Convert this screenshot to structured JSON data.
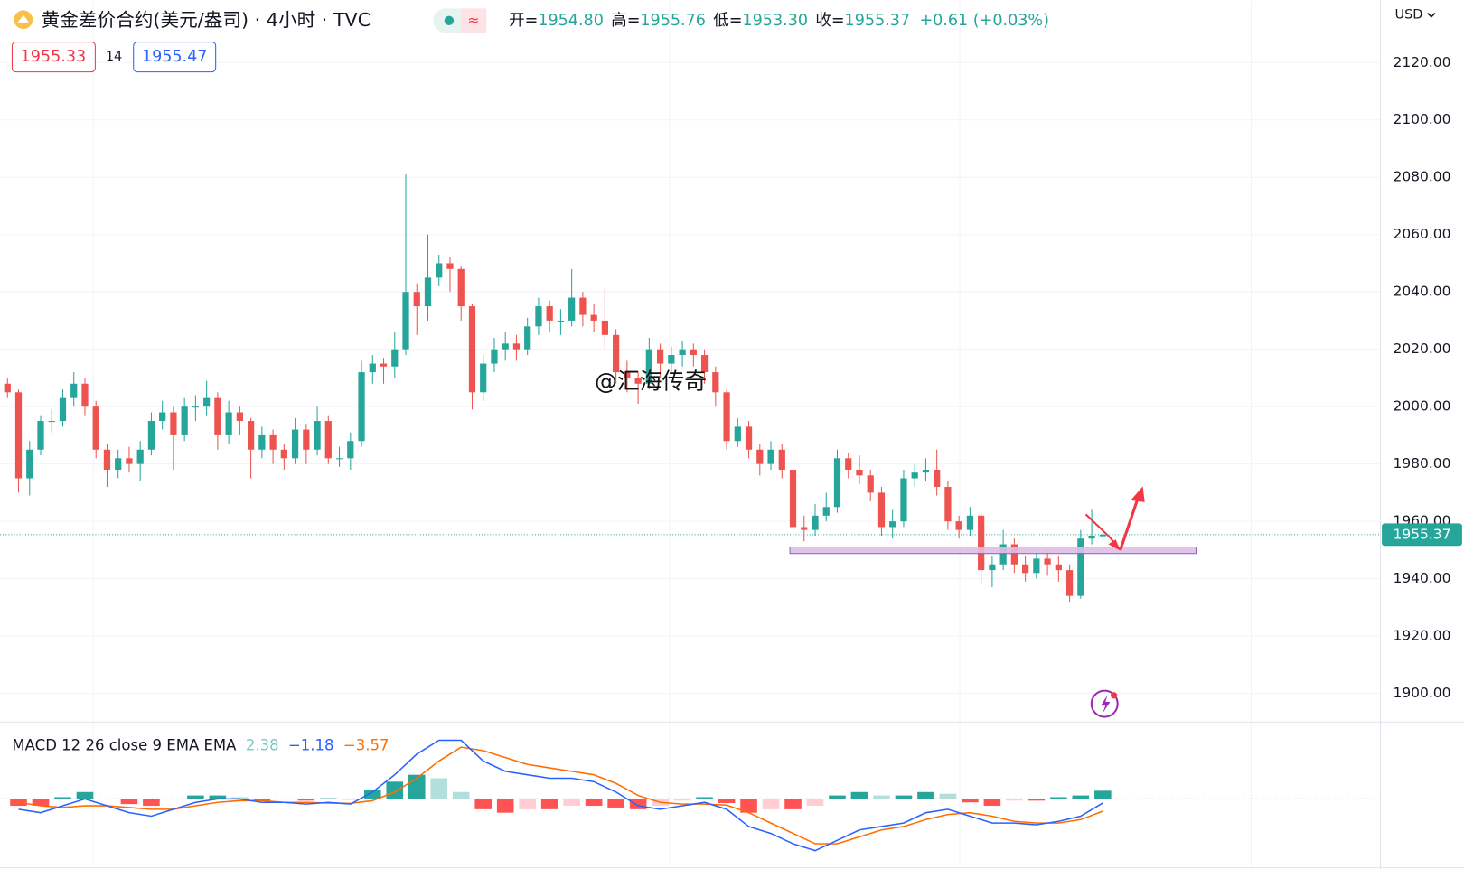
{
  "chart_data": {
    "type": "candlestick",
    "title": "黄金差价合约(美元/盎司) · 4小时 · TVC",
    "ohlc_legend": [
      {
        "label": "开=",
        "value": "1954.80"
      },
      {
        "label": "高=",
        "value": "1955.76"
      },
      {
        "label": "低=",
        "value": "1953.30"
      },
      {
        "label": "收=",
        "value": "1955.37"
      }
    ],
    "change": "+0.61 (+0.03%)",
    "bid": "1955.33",
    "spread": "14",
    "ask": "1955.47",
    "currency": "USD",
    "watermark": "@汇海传奇",
    "colors": {
      "up": "#26a69a",
      "down": "#ef5350"
    },
    "grid": true,
    "ylim": [
      1890.2,
      2141.8
    ],
    "yticks": [
      {
        "value": 1900,
        "label": "1900.00"
      },
      {
        "value": 1920,
        "label": "1920.00"
      },
      {
        "value": 1940,
        "label": "1940.00"
      },
      {
        "value": 1960,
        "label": "1960.00"
      },
      {
        "value": 1980,
        "label": "1980.00"
      },
      {
        "value": 2000,
        "label": "2000.00"
      },
      {
        "value": 2020,
        "label": "2020.00"
      },
      {
        "value": 2040,
        "label": "2040.00"
      },
      {
        "value": 2060,
        "label": "2060.00"
      },
      {
        "value": 2080,
        "label": "2080.00"
      },
      {
        "value": 2100,
        "label": "2100.00"
      },
      {
        "value": 2120,
        "label": "2120.00"
      }
    ],
    "candles": [
      [
        2008,
        2010,
        2003,
        2005
      ],
      [
        2005,
        2006,
        1970,
        1975
      ],
      [
        1975,
        1988,
        1969,
        1985
      ],
      [
        1985,
        1997,
        1983,
        1995
      ],
      [
        1995,
        1999,
        1991,
        1995
      ],
      [
        1995,
        2006,
        1993,
        2003
      ],
      [
        2003,
        2012,
        2000,
        2008
      ],
      [
        2008,
        2010,
        1997,
        2000
      ],
      [
        2000,
        2002,
        1982,
        1985
      ],
      [
        1985,
        1987,
        1972,
        1978
      ],
      [
        1978,
        1985,
        1975,
        1982
      ],
      [
        1982,
        1986,
        1977,
        1980
      ],
      [
        1980,
        1988,
        1974,
        1985
      ],
      [
        1985,
        1998,
        1983,
        1995
      ],
      [
        1995,
        2002,
        1992,
        1998
      ],
      [
        1998,
        2000,
        1978,
        1990
      ],
      [
        1990,
        2003,
        1988,
        2000
      ],
      [
        2000,
        2004,
        1995,
        2000
      ],
      [
        2000,
        2009,
        1997,
        2003
      ],
      [
        2003,
        2005,
        1985,
        1990
      ],
      [
        1990,
        2002,
        1987,
        1998
      ],
      [
        1998,
        2000,
        1990,
        1995
      ],
      [
        1995,
        1996,
        1975,
        1985
      ],
      [
        1985,
        1993,
        1982,
        1990
      ],
      [
        1990,
        1992,
        1980,
        1985
      ],
      [
        1985,
        1987,
        1978,
        1982
      ],
      [
        1982,
        1996,
        1980,
        1992
      ],
      [
        1992,
        1994,
        1980,
        1985
      ],
      [
        1985,
        2000,
        1983,
        1995
      ],
      [
        1995,
        1997,
        1980,
        1982
      ],
      [
        1982,
        1986,
        1979,
        1982
      ],
      [
        1982,
        1991,
        1978,
        1988
      ],
      [
        1988,
        2016,
        1986,
        2012
      ],
      [
        2012,
        2018,
        2008,
        2015
      ],
      [
        2015,
        2017,
        2008,
        2014
      ],
      [
        2014,
        2026,
        2010,
        2020
      ],
      [
        2020,
        2081,
        2018,
        2040
      ],
      [
        2040,
        2043,
        2025,
        2035
      ],
      [
        2035,
        2060,
        2030,
        2045
      ],
      [
        2045,
        2053,
        2042,
        2050
      ],
      [
        2050,
        2052,
        2040,
        2048
      ],
      [
        2048,
        2049,
        2030,
        2035
      ],
      [
        2035,
        2036,
        1999,
        2005
      ],
      [
        2005,
        2018,
        2002,
        2015
      ],
      [
        2015,
        2024,
        2012,
        2020
      ],
      [
        2020,
        2026,
        2016,
        2022
      ],
      [
        2022,
        2025,
        2016,
        2020
      ],
      [
        2020,
        2031,
        2018,
        2028
      ],
      [
        2028,
        2038,
        2025,
        2035
      ],
      [
        2035,
        2037,
        2026,
        2030
      ],
      [
        2030,
        2034,
        2025,
        2030
      ],
      [
        2030,
        2048,
        2028,
        2038
      ],
      [
        2038,
        2040,
        2028,
        2032
      ],
      [
        2032,
        2036,
        2026,
        2030
      ],
      [
        2030,
        2041,
        2020,
        2025
      ],
      [
        2025,
        2027,
        2008,
        2012
      ],
      [
        2012,
        2016,
        2005,
        2010
      ],
      [
        2010,
        2012,
        2001,
        2008
      ],
      [
        2008,
        2024,
        2006,
        2020
      ],
      [
        2020,
        2022,
        2010,
        2015
      ],
      [
        2015,
        2021,
        2012,
        2018
      ],
      [
        2018,
        2023,
        2014,
        2020
      ],
      [
        2020,
        2022,
        2014,
        2018
      ],
      [
        2018,
        2020,
        2008,
        2012
      ],
      [
        2012,
        2014,
        2000,
        2005
      ],
      [
        2005,
        2006,
        1985,
        1988
      ],
      [
        1988,
        1996,
        1986,
        1993
      ],
      [
        1993,
        1995,
        1982,
        1985
      ],
      [
        1985,
        1987,
        1976,
        1980
      ],
      [
        1980,
        1988,
        1978,
        1985
      ],
      [
        1985,
        1987,
        1975,
        1978
      ],
      [
        1978,
        1979,
        1952,
        1958
      ],
      [
        1958,
        1962,
        1953,
        1957
      ],
      [
        1957,
        1966,
        1955,
        1962
      ],
      [
        1962,
        1970,
        1960,
        1965
      ],
      [
        1965,
        1985,
        1963,
        1982
      ],
      [
        1982,
        1984,
        1975,
        1978
      ],
      [
        1978,
        1983,
        1973,
        1976
      ],
      [
        1976,
        1978,
        1967,
        1970
      ],
      [
        1970,
        1972,
        1955,
        1958
      ],
      [
        1958,
        1964,
        1954,
        1960
      ],
      [
        1960,
        1978,
        1958,
        1975
      ],
      [
        1975,
        1980,
        1972,
        1977
      ],
      [
        1977,
        1982,
        1974,
        1978
      ],
      [
        1978,
        1985,
        1969,
        1972
      ],
      [
        1972,
        1974,
        1957,
        1960
      ],
      [
        1960,
        1962,
        1954,
        1957
      ],
      [
        1957,
        1965,
        1955,
        1962
      ],
      [
        1962,
        1963,
        1938,
        1943
      ],
      [
        1943,
        1948,
        1937,
        1945
      ],
      [
        1945,
        1957,
        1943,
        1952
      ],
      [
        1952,
        1954,
        1942,
        1945
      ],
      [
        1945,
        1948,
        1939,
        1942
      ],
      [
        1942,
        1950,
        1940,
        1947
      ],
      [
        1947,
        1950,
        1941,
        1945
      ],
      [
        1945,
        1948,
        1939,
        1943
      ],
      [
        1943,
        1945,
        1932,
        1934
      ],
      [
        1934,
        1957,
        1933,
        1954
      ],
      [
        1954,
        1964,
        1952,
        1955
      ],
      [
        1954.8,
        1955.76,
        1953.3,
        1955.37
      ]
    ],
    "macd": {
      "title": "MACD 12 26 close 9 EMA EMA",
      "legend_values": [
        "2.38",
        "−1.18",
        "−3.57"
      ],
      "ylim": [
        -19.5,
        21.1
      ],
      "colors": {
        "macd": "#2962ff",
        "signal": "#ff6d00",
        "hist_up_strong": "#26a69a",
        "hist_up_weak": "#b2dfdb",
        "hist_down_strong": "#ff5252",
        "hist_down_weak": "#ffcdd2"
      },
      "macd": [
        -3,
        -4,
        -2,
        0,
        -2,
        -4,
        -5,
        -3,
        -1,
        0,
        0,
        -1,
        -1,
        -1.5,
        -1,
        -1.5,
        2,
        7,
        13,
        17,
        17,
        11,
        8,
        7,
        6,
        6,
        5,
        2,
        -2,
        -3,
        -2,
        -1,
        -3,
        -8,
        -10,
        -13,
        -15,
        -12,
        -9,
        -8,
        -7,
        -4,
        -3,
        -5,
        -7,
        -7,
        -7.5,
        -6.5,
        -5,
        -1.18
      ],
      "signal": [
        -1,
        -2,
        -2.5,
        -2,
        -2,
        -2.5,
        -3,
        -3,
        -2,
        -1,
        -0.5,
        -0.5,
        -1,
        -1,
        -1.2,
        -1.3,
        -0.5,
        2,
        6,
        11,
        15,
        14,
        12,
        10,
        9,
        8,
        7,
        4.5,
        1,
        -1,
        -1.5,
        -1.5,
        -1.8,
        -4,
        -7,
        -10,
        -13,
        -13,
        -11,
        -9,
        -8,
        -6,
        -4.5,
        -4,
        -5,
        -6.5,
        -7,
        -7,
        -6,
        -3.57
      ],
      "histogram": [
        -2,
        -2,
        0.5,
        2,
        0,
        -1.5,
        -2,
        0,
        1,
        1,
        0.5,
        -0.5,
        0,
        -0.5,
        0.2,
        -0.2,
        2.5,
        5,
        7,
        6,
        2,
        -3,
        -4,
        -3,
        -3,
        -2,
        -2,
        -2.5,
        -3,
        -2,
        -0.5,
        0.5,
        -1.2,
        -4,
        -3,
        -3,
        -2,
        1,
        2,
        1,
        1,
        2,
        1.5,
        -1,
        -2,
        -0.5,
        -0.5,
        0.5,
        1,
        2.38
      ]
    }
  }
}
